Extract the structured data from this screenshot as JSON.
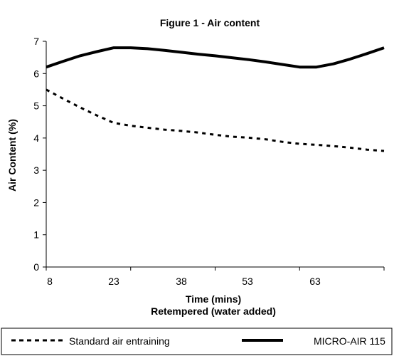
{
  "chart_data": {
    "type": "line",
    "title": "Figure 1 - Air content",
    "xlabel": "Time (mins)",
    "xlabel2": "Retempered  (water added)",
    "ylabel": "Air Content (%)",
    "ylim": [
      0,
      7
    ],
    "yticks": [
      "0",
      "1",
      "2",
      "3",
      "4",
      "5",
      "6",
      "7"
    ],
    "xticks": [
      "8",
      "23",
      "38",
      "53",
      "63"
    ],
    "x_positions": [
      0,
      1,
      2,
      3,
      4,
      5,
      6,
      7,
      8,
      9,
      10,
      11,
      12,
      13,
      14,
      15,
      16,
      17,
      18,
      19,
      20
    ],
    "series": [
      {
        "name": "Standard air entraining",
        "style": "dashed",
        "values": [
          5.5,
          5.22,
          4.95,
          4.7,
          4.47,
          4.38,
          4.32,
          4.26,
          4.22,
          4.17,
          4.1,
          4.04,
          4.01,
          3.96,
          3.88,
          3.82,
          3.79,
          3.75,
          3.7,
          3.64,
          3.6
        ]
      },
      {
        "name": "MICRO-AIR 115",
        "style": "solid",
        "values": [
          6.2,
          6.38,
          6.55,
          6.68,
          6.8,
          6.8,
          6.77,
          6.72,
          6.66,
          6.6,
          6.55,
          6.49,
          6.43,
          6.36,
          6.28,
          6.2,
          6.2,
          6.3,
          6.45,
          6.62,
          6.8
        ]
      }
    ],
    "grid": false,
    "legend_position": "bottom",
    "colors": {
      "line": "#000000",
      "background": "#ffffff"
    }
  }
}
